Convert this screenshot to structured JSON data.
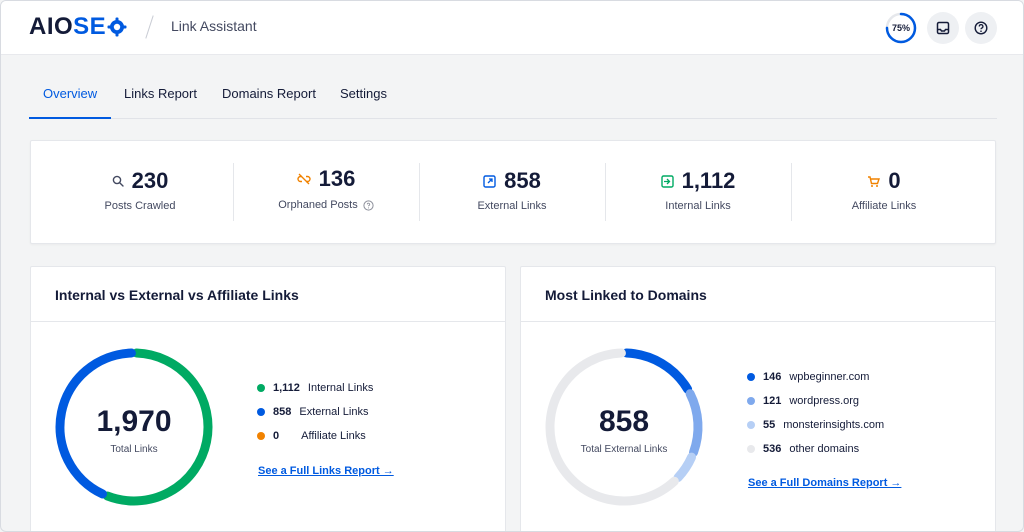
{
  "header": {
    "logo_aio": "AIO",
    "logo_seo": "SE",
    "breadcrumb": "Link Assistant",
    "score": "75%",
    "score_value": 0.75,
    "icons": [
      "inbox-icon",
      "help-icon"
    ]
  },
  "tabs": [
    {
      "label": "Overview",
      "active": true
    },
    {
      "label": "Links Report",
      "active": false
    },
    {
      "label": "Domains Report",
      "active": false
    },
    {
      "label": "Settings",
      "active": false
    }
  ],
  "stats": [
    {
      "value": "230",
      "label": "Posts Crawled",
      "icon": "search-icon"
    },
    {
      "value": "136",
      "label": "Orphaned Posts",
      "icon": "broken-link-icon"
    },
    {
      "value": "858",
      "label": "External Links",
      "icon": "external-link-icon"
    },
    {
      "value": "1,112",
      "label": "Internal Links",
      "icon": "internal-link-icon"
    },
    {
      "value": "0",
      "label": "Affiliate Links",
      "icon": "cart-icon"
    }
  ],
  "links_card": {
    "title": "Internal vs External vs Affiliate Links",
    "total": "1,970",
    "total_label": "Total Links",
    "legend": [
      {
        "value": "1,112",
        "label": "Internal Links",
        "color": "#00aa63",
        "amount": 1112
      },
      {
        "value": "858",
        "label": "External Links",
        "color": "#005ae0",
        "amount": 858
      },
      {
        "value": "0",
        "label": "Affiliate Links",
        "color": "#f18200",
        "amount": 0
      }
    ],
    "link": "See a Full Links Report →"
  },
  "domains_card": {
    "title": "Most Linked to Domains",
    "total": "858",
    "total_label": "Total External Links",
    "legend": [
      {
        "value": "146",
        "label": "wpbeginner.com",
        "color": "#005ae0",
        "amount": 146
      },
      {
        "value": "121",
        "label": "wordpress.org",
        "color": "#7fa9ed",
        "amount": 121
      },
      {
        "value": "55",
        "label": "monsterinsights.com",
        "color": "#b6cff5",
        "amount": 55
      },
      {
        "value": "536",
        "label": "other domains",
        "color": "#e8e9ec",
        "amount": 536
      }
    ],
    "link": "See a Full Domains Report →"
  }
}
